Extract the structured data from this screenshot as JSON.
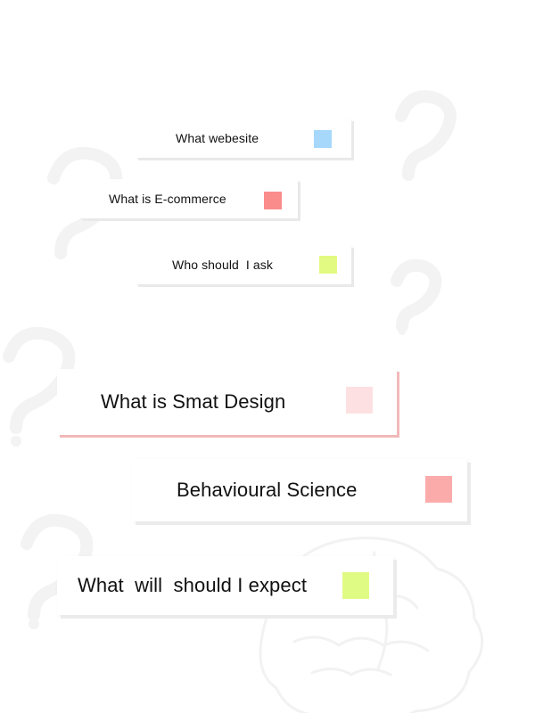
{
  "cards": [
    {
      "label": "What webesite",
      "color": "#a6d8fb"
    },
    {
      "label": "What is E-commerce",
      "color": "#fb8c8c"
    },
    {
      "label": "Who should  I ask",
      "color": "#e2f982"
    },
    {
      "label": "What is Smat Design",
      "color": "#fde0e1"
    },
    {
      "label": "Behavioural Science",
      "color": "#fcabab"
    },
    {
      "label": "What  will  should I expect",
      "color": "#e0fb84"
    }
  ],
  "background": {
    "page_color": "#ffffff",
    "decoration_icons": [
      "question-mark-icon",
      "brain-icon"
    ]
  }
}
